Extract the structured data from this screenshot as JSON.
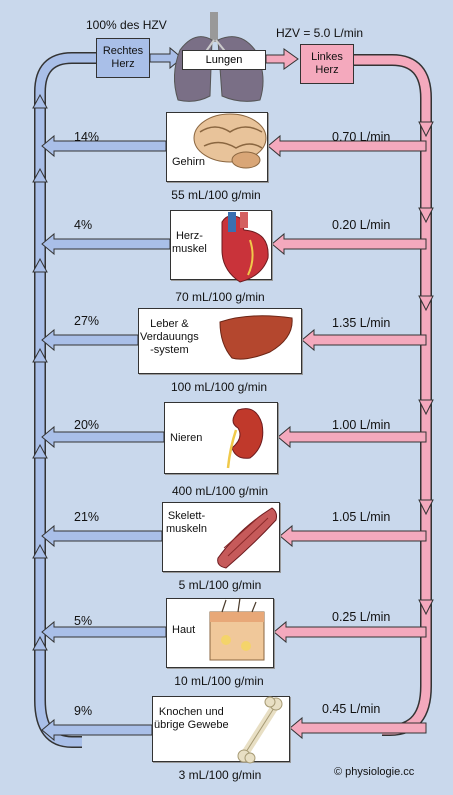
{
  "header": {
    "rv_percent": "100% des HZV",
    "hzv": "HZV = 5.0 L/min",
    "right_heart": "Rechtes\nHerz",
    "left_heart": "Linkes\nHerz",
    "lungs": "Lungen"
  },
  "organs": [
    {
      "key": "brain",
      "label": "Gehirn",
      "percent": "14%",
      "cardiac_output": "0.70 L/min",
      "perfusion": "55 mL/100 g/min"
    },
    {
      "key": "heart",
      "label": "Herz-\nmuskel",
      "percent": "4%",
      "cardiac_output": "0.20 L/min",
      "perfusion": "70 mL/100 g/min"
    },
    {
      "key": "liver",
      "label": "Leber &\nVerdauungs\n-system",
      "percent": "27%",
      "cardiac_output": "1.35 L/min",
      "perfusion": "100 mL/100 g/min"
    },
    {
      "key": "kidney",
      "label": "Nieren",
      "percent": "20%",
      "cardiac_output": "1.00 L/min",
      "perfusion": "400 mL/100 g/min"
    },
    {
      "key": "muscle",
      "label": "Skelett-\nmuskeln",
      "percent": "21%",
      "cardiac_output": "1.05 L/min",
      "perfusion": "5 mL/100 g/min"
    },
    {
      "key": "skin",
      "label": "Haut",
      "percent": "5%",
      "cardiac_output": "0.25 L/min",
      "perfusion": "10 mL/100 g/min"
    },
    {
      "key": "bone",
      "label": "Knochen und\nübrige Gewebe",
      "percent": "9%",
      "cardiac_output": "0.45 L/min",
      "perfusion": "3 mL/100 g/min"
    }
  ],
  "copyright": "© physiologie.cc",
  "colors": {
    "background": "#c9d8ec",
    "venous": "#a9bfe8",
    "arterial": "#f4a9bd",
    "outline": "#333333"
  }
}
